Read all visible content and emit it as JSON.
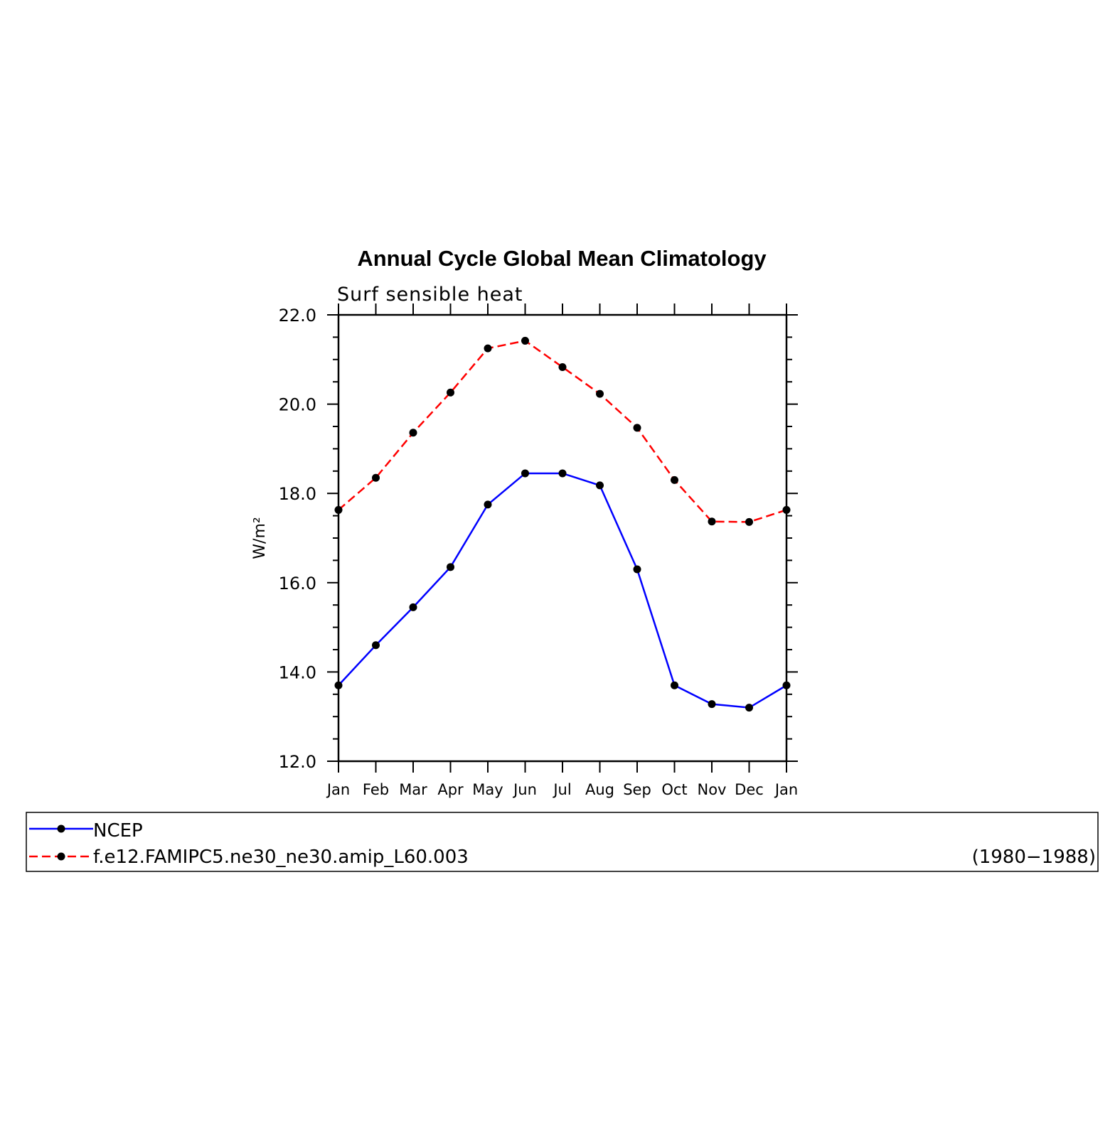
{
  "colors": {
    "ncep": "#0000ff",
    "model": "#ff0000",
    "marker": "#000000"
  },
  "chart_data": {
    "type": "line",
    "title": "Annual Cycle Global Mean Climatology",
    "subtitle": "Surf sensible heat",
    "ylabel": "W/m²",
    "xlabel": "",
    "categories": [
      "Jan",
      "Feb",
      "Mar",
      "Apr",
      "May",
      "Jun",
      "Jul",
      "Aug",
      "Sep",
      "Oct",
      "Nov",
      "Dec",
      "Jan"
    ],
    "ylim": [
      12.0,
      22.0
    ],
    "yticks": [
      "12.0",
      "14.0",
      "16.0",
      "18.0",
      "20.0",
      "22.0"
    ],
    "grid": false,
    "legend_position": "below",
    "series": [
      {
        "name": "NCEP",
        "style": "solid",
        "values": [
          13.7,
          14.6,
          15.45,
          16.35,
          17.75,
          18.45,
          18.45,
          18.18,
          16.3,
          13.7,
          13.28,
          13.2,
          13.7
        ]
      },
      {
        "name": "f.e12.FAMIPC5.ne30_ne30.amip_L60.003",
        "style": "dashed",
        "values": [
          17.63,
          18.35,
          19.36,
          20.26,
          21.25,
          21.42,
          20.83,
          20.23,
          19.47,
          18.3,
          17.37,
          17.36,
          17.63
        ]
      }
    ],
    "annotations": [
      "(1980−1988)"
    ]
  }
}
